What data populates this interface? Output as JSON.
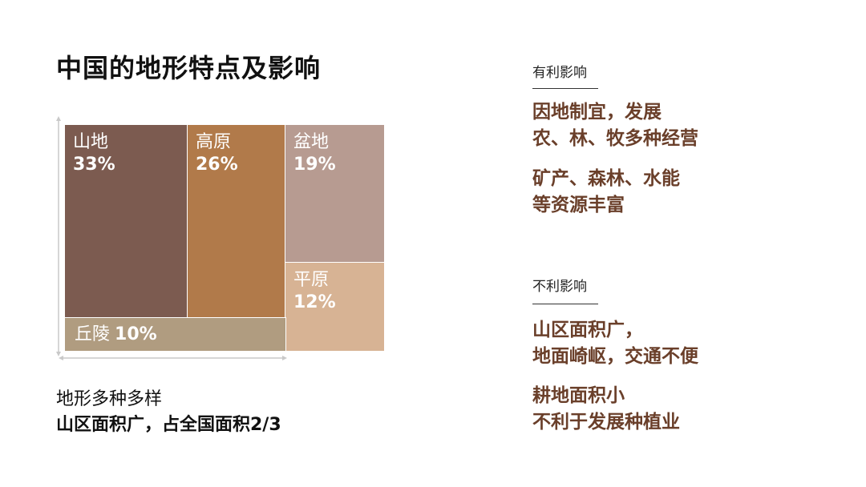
{
  "title": "中国的地形特点及影响",
  "chart_data": {
    "type": "treemap",
    "tiles": [
      {
        "name": "山地",
        "value": 33,
        "label": "33%",
        "color": "#7c5b50"
      },
      {
        "name": "高原",
        "value": 26,
        "label": "26%",
        "color": "#b17a4a"
      },
      {
        "name": "盆地",
        "value": 19,
        "label": "19%",
        "color": "#b79b91"
      },
      {
        "name": "平原",
        "value": 12,
        "label": "12%",
        "color": "#d7b394"
      },
      {
        "name": "丘陵",
        "value": 10,
        "label": "10%",
        "color": "#b09c80"
      }
    ]
  },
  "caption": {
    "line1": "地形多种多样",
    "line2": "山区面积广，占全国面积2/3"
  },
  "favorable": {
    "heading": "有利影响",
    "points": [
      [
        "因地制宜，发展",
        "农、林、牧多种经营"
      ],
      [
        "矿产、森林、水能",
        "等资源丰富"
      ]
    ]
  },
  "unfavorable": {
    "heading": "不利影响",
    "points": [
      [
        "山区面积广，",
        "地面崎岖，交通不便"
      ],
      [
        "耕地面积小",
        "不利于发展种植业"
      ]
    ]
  },
  "colors": {
    "accent_text": "#6a3f2a",
    "axis": "#c9c9c9"
  }
}
